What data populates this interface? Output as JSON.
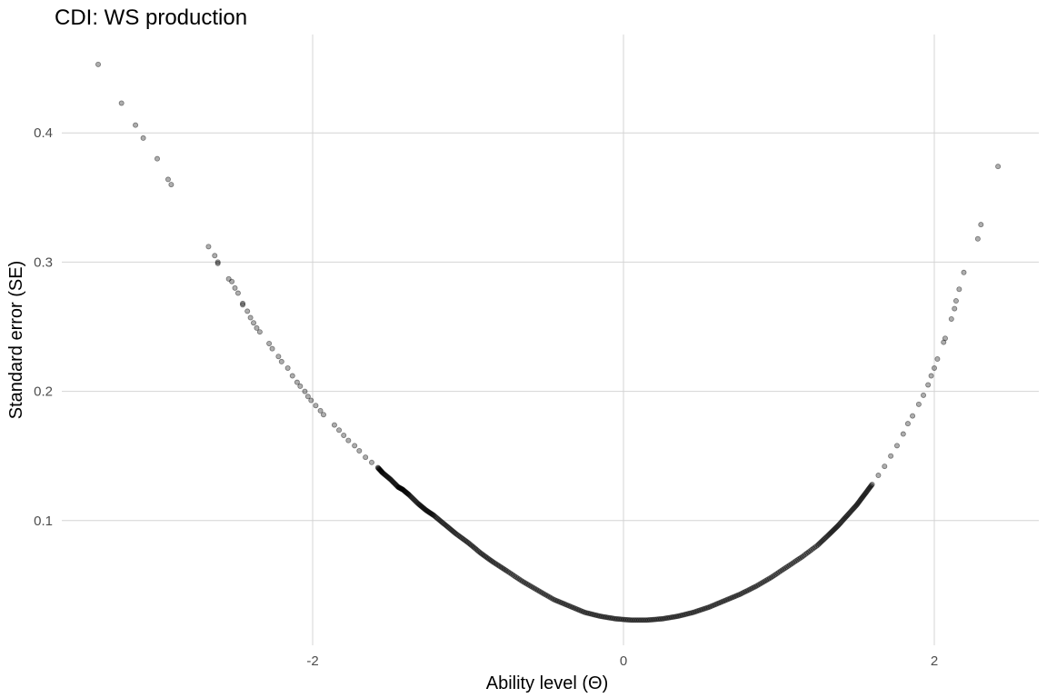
{
  "chart_data": {
    "type": "scatter",
    "title": "CDI: WS production",
    "xlabel": "Ability level (Θ)",
    "ylabel": "Standard error (SE)",
    "xlim": [
      -3.35,
      2.7
    ],
    "ylim": [
      0.0,
      0.475
    ],
    "x_ticks": [
      -2,
      0,
      2
    ],
    "x_tick_labels": [
      "-2",
      "0",
      "2"
    ],
    "y_ticks": [
      0.1,
      0.2,
      0.3,
      0.4
    ],
    "y_tick_labels": [
      "0.1",
      "0.2",
      "0.3",
      "0.4"
    ],
    "grid": true,
    "legend": "none",
    "point_color": "#000000",
    "point_alpha": 0.35,
    "points": [
      [
        -3.38,
        0.453
      ],
      [
        -3.23,
        0.423
      ],
      [
        -3.14,
        0.406
      ],
      [
        -3.09,
        0.396
      ],
      [
        -3.0,
        0.38
      ],
      [
        -2.93,
        0.364
      ],
      [
        -2.91,
        0.36
      ],
      [
        -2.67,
        0.312
      ],
      [
        -2.63,
        0.305
      ],
      [
        -2.61,
        0.3
      ],
      [
        -2.61,
        0.299
      ],
      [
        -2.54,
        0.287
      ],
      [
        -2.52,
        0.285
      ],
      [
        -2.5,
        0.28
      ],
      [
        -2.48,
        0.276
      ],
      [
        -2.45,
        0.268
      ],
      [
        -2.45,
        0.267
      ],
      [
        -2.42,
        0.262
      ],
      [
        -2.4,
        0.257
      ],
      [
        -2.38,
        0.253
      ],
      [
        -2.36,
        0.249
      ],
      [
        -2.34,
        0.246
      ],
      [
        -2.28,
        0.237
      ],
      [
        -2.26,
        0.233
      ],
      [
        -2.22,
        0.227
      ],
      [
        -2.2,
        0.223
      ],
      [
        -2.16,
        0.218
      ],
      [
        -2.13,
        0.212
      ],
      [
        -2.1,
        0.207
      ],
      [
        -2.08,
        0.204
      ],
      [
        -2.05,
        0.2
      ],
      [
        -2.03,
        0.196
      ],
      [
        -2.01,
        0.193
      ],
      [
        -1.98,
        0.189
      ],
      [
        -1.95,
        0.185
      ],
      [
        -1.93,
        0.182
      ],
      [
        -1.86,
        0.174
      ],
      [
        -1.83,
        0.17
      ],
      [
        -1.8,
        0.166
      ],
      [
        -1.77,
        0.162
      ],
      [
        -1.73,
        0.158
      ],
      [
        -1.7,
        0.154
      ],
      [
        -1.66,
        0.149
      ],
      [
        -1.62,
        0.145
      ],
      [
        -1.58,
        0.141
      ],
      [
        -1.55,
        0.137
      ],
      [
        -1.5,
        0.132
      ],
      [
        -1.45,
        0.126
      ],
      [
        -1.42,
        0.124
      ],
      [
        -1.38,
        0.12
      ],
      [
        -1.32,
        0.113
      ],
      [
        -1.27,
        0.108
      ],
      [
        -1.22,
        0.104
      ],
      [
        -1.15,
        0.097
      ],
      [
        -1.08,
        0.09
      ],
      [
        -1.0,
        0.083
      ],
      [
        -0.92,
        0.075
      ],
      [
        -0.84,
        0.068
      ],
      [
        -0.75,
        0.061
      ],
      [
        -0.65,
        0.053
      ],
      [
        -0.55,
        0.046
      ],
      [
        -0.45,
        0.039
      ],
      [
        -0.35,
        0.034
      ],
      [
        -0.25,
        0.029
      ],
      [
        -0.15,
        0.026
      ],
      [
        -0.05,
        0.024
      ],
      [
        0.05,
        0.023
      ],
      [
        0.15,
        0.023
      ],
      [
        0.25,
        0.024
      ],
      [
        0.35,
        0.026
      ],
      [
        0.45,
        0.029
      ],
      [
        0.55,
        0.033
      ],
      [
        0.65,
        0.038
      ],
      [
        0.75,
        0.043
      ],
      [
        0.85,
        0.049
      ],
      [
        0.95,
        0.056
      ],
      [
        1.05,
        0.064
      ],
      [
        1.15,
        0.072
      ],
      [
        1.25,
        0.081
      ],
      [
        1.32,
        0.089
      ],
      [
        1.38,
        0.096
      ],
      [
        1.44,
        0.104
      ],
      [
        1.5,
        0.112
      ],
      [
        1.55,
        0.12
      ],
      [
        1.6,
        0.128
      ],
      [
        1.64,
        0.135
      ],
      [
        1.68,
        0.142
      ],
      [
        1.72,
        0.15
      ],
      [
        1.76,
        0.158
      ],
      [
        1.8,
        0.167
      ],
      [
        1.83,
        0.175
      ],
      [
        1.86,
        0.181
      ],
      [
        1.9,
        0.19
      ],
      [
        1.93,
        0.197
      ],
      [
        1.96,
        0.205
      ],
      [
        1.98,
        0.212
      ],
      [
        2.0,
        0.218
      ],
      [
        2.02,
        0.225
      ],
      [
        2.06,
        0.238
      ],
      [
        2.07,
        0.241
      ],
      [
        2.11,
        0.256
      ],
      [
        2.13,
        0.264
      ],
      [
        2.14,
        0.27
      ],
      [
        2.16,
        0.279
      ],
      [
        2.19,
        0.292
      ],
      [
        2.28,
        0.318
      ],
      [
        2.3,
        0.329
      ],
      [
        2.41,
        0.374
      ]
    ]
  }
}
